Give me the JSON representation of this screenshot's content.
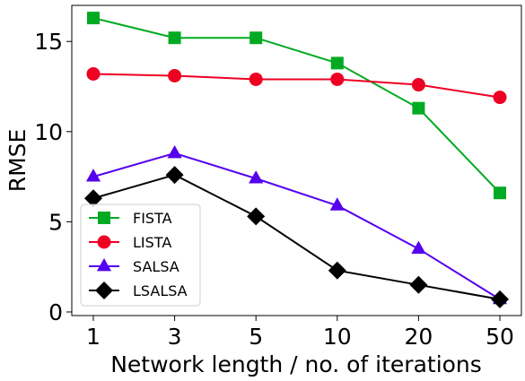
{
  "chart_data": {
    "type": "line",
    "xlabel": "Network length / no. of iterations",
    "ylabel": "RMSE",
    "categories": [
      "1",
      "3",
      "5",
      "10",
      "20",
      "50"
    ],
    "ylim": [
      -0.2,
      17
    ],
    "yticks": [
      0,
      5,
      10,
      15
    ],
    "grid": false,
    "legend": "lower-left",
    "series": [
      {
        "name": "FISTA",
        "color": "#00aa22",
        "marker": "square",
        "values": [
          16.3,
          15.2,
          15.2,
          13.8,
          11.3,
          6.6
        ]
      },
      {
        "name": "LISTA",
        "color": "#ee0022",
        "marker": "circle",
        "values": [
          13.2,
          13.1,
          12.9,
          12.9,
          12.6,
          11.9
        ]
      },
      {
        "name": "SALSA",
        "color": "#5500ee",
        "marker": "triangle",
        "values": [
          7.5,
          8.8,
          7.4,
          5.9,
          3.5,
          0.7
        ]
      },
      {
        "name": "LSALSA",
        "color": "#000000",
        "marker": "diamond",
        "values": [
          6.3,
          7.6,
          5.3,
          2.3,
          1.5,
          0.7
        ]
      }
    ]
  }
}
